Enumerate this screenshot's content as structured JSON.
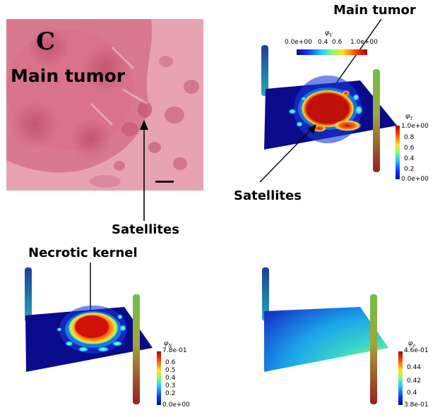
{
  "histology": {
    "panel_letter": "C",
    "main_label": "Main tumor",
    "satellites_label": "Satellites"
  },
  "sim_viable": {
    "label_main": "Main tumor",
    "label_satellites": "Satellites",
    "top_colorbar": {
      "title": "φ",
      "subscript": "V",
      "min_label": "0.0e+00",
      "mid_labels": [
        "0.4",
        "0.6"
      ],
      "max_label": "1.0e+00"
    },
    "side_colorbar": {
      "title": "φ",
      "subscript": "T",
      "ticks": [
        "1.0e+00",
        "0.8",
        "0.6",
        "0.4",
        "0.2",
        "0.0e+00"
      ]
    }
  },
  "sim_necrotic": {
    "label": "Necrotic kernel",
    "colorbar": {
      "title": "φ",
      "subscript": "N",
      "ticks": [
        "7.8e-01",
        "0.6",
        "0.5",
        "0.4",
        "0.3",
        "0.2",
        "0.0e+00"
      ]
    }
  },
  "sim_nutrient": {
    "colorbar": {
      "title": "φ",
      "subscript": "σ",
      "ticks": [
        "4.6e-01",
        "0.44",
        "0.42",
        "0.4",
        "3.8e-01"
      ]
    }
  },
  "colors": {
    "jet_blue": "#0a0a8c",
    "jet_red": "#b40f0f",
    "tissue_pink": "#e590a0"
  }
}
